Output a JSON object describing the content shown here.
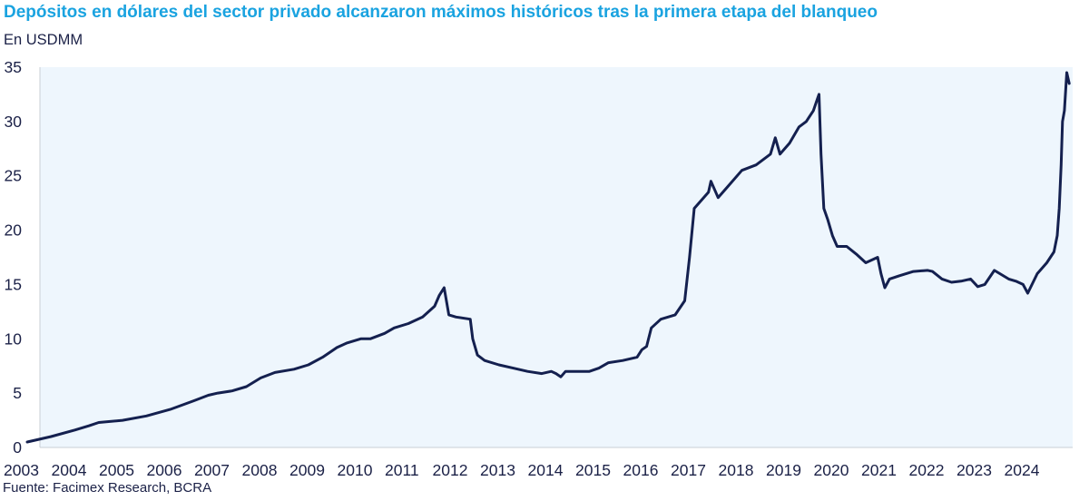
{
  "title": "Depósitos en dólares del sector privado alcanzaron máximos históricos tras la primera etapa del blanqueo",
  "unit": "En USDMM",
  "source": "Fuente: Facimex Research, BCRA",
  "colors": {
    "title": "#1aa3e0",
    "line": "#14204f",
    "plot_bg": "#eef6fd",
    "text": "#1b2147"
  },
  "chart_data": {
    "type": "line",
    "title": "Depósitos en dólares del sector privado alcanzaron máximos históricos tras la primera etapa del blanqueo",
    "ylabel": "En USDMM",
    "xlabel": "",
    "xlim": [
      2003,
      2024.92
    ],
    "ylim": [
      0,
      35
    ],
    "yticks": [
      0,
      5,
      10,
      15,
      20,
      25,
      30,
      35
    ],
    "xticks": [
      2003,
      2004,
      2005,
      2006,
      2007,
      2008,
      2009,
      2010,
      2011,
      2012,
      2013,
      2014,
      2015,
      2016,
      2017,
      2018,
      2019,
      2020,
      2021,
      2022,
      2023,
      2024
    ],
    "legend": "none",
    "grid": false,
    "series": [
      {
        "name": "Depósitos en dólares del sector privado",
        "color": "#14204f",
        "x": [
          2003.0,
          2003.5,
          2004.0,
          2004.3,
          2004.5,
          2005.0,
          2005.5,
          2006.0,
          2006.5,
          2006.8,
          2007.0,
          2007.3,
          2007.6,
          2007.9,
          2008.2,
          2008.6,
          2008.9,
          2009.2,
          2009.5,
          2009.7,
          2010.0,
          2010.2,
          2010.5,
          2010.7,
          2011.0,
          2011.3,
          2011.55,
          2011.65,
          2011.75,
          2011.85,
          2012.0,
          2012.3,
          2012.35,
          2012.45,
          2012.6,
          2012.9,
          2013.2,
          2013.5,
          2013.8,
          2014.0,
          2014.1,
          2014.2,
          2014.3,
          2014.5,
          2014.8,
          2015.0,
          2015.2,
          2015.5,
          2015.8,
          2015.9,
          2016.0,
          2016.1,
          2016.3,
          2016.6,
          2016.8,
          2016.9,
          2017.0,
          2017.3,
          2017.35,
          2017.5,
          2017.7,
          2018.0,
          2018.3,
          2018.6,
          2018.7,
          2018.8,
          2019.0,
          2019.2,
          2019.35,
          2019.5,
          2019.58,
          2019.62,
          2019.66,
          2019.72,
          2019.8,
          2019.9,
          2020.0,
          2020.2,
          2020.4,
          2020.6,
          2020.85,
          2020.92,
          2021.0,
          2021.1,
          2021.3,
          2021.6,
          2021.9,
          2022.0,
          2022.2,
          2022.4,
          2022.6,
          2022.8,
          2022.95,
          2023.1,
          2023.3,
          2023.6,
          2023.75,
          2023.9,
          2024.0,
          2024.2,
          2024.4,
          2024.55,
          2024.62,
          2024.66,
          2024.7,
          2024.73,
          2024.77,
          2024.82,
          2024.87
        ],
        "values": [
          0.5,
          1.0,
          1.6,
          2.0,
          2.3,
          2.5,
          2.9,
          3.5,
          4.3,
          4.8,
          5.0,
          5.2,
          5.6,
          6.4,
          6.9,
          7.2,
          7.6,
          8.3,
          9.2,
          9.6,
          10.0,
          10.0,
          10.5,
          11.0,
          11.4,
          12.0,
          13.0,
          14.0,
          14.7,
          12.2,
          12.0,
          11.8,
          10.0,
          8.5,
          8.0,
          7.6,
          7.3,
          7.0,
          6.8,
          7.0,
          6.8,
          6.5,
          7.0,
          7.0,
          7.0,
          7.3,
          7.8,
          8.0,
          8.3,
          9.0,
          9.3,
          11.0,
          11.8,
          12.2,
          13.5,
          17.5,
          22.0,
          23.5,
          24.5,
          23.0,
          24.0,
          25.5,
          26.0,
          27.0,
          28.5,
          27.0,
          28.0,
          29.5,
          30.0,
          31.0,
          32.0,
          32.5,
          27.0,
          22.0,
          21.0,
          19.5,
          18.5,
          18.5,
          17.8,
          17.0,
          17.5,
          16.0,
          14.7,
          15.5,
          15.8,
          16.2,
          16.3,
          16.2,
          15.5,
          15.2,
          15.3,
          15.5,
          14.8,
          15.0,
          16.3,
          15.5,
          15.3,
          15.0,
          14.2,
          16.0,
          17.0,
          18.0,
          19.5,
          22.0,
          26.0,
          30.0,
          31.0,
          34.5,
          33.5
        ]
      }
    ]
  }
}
